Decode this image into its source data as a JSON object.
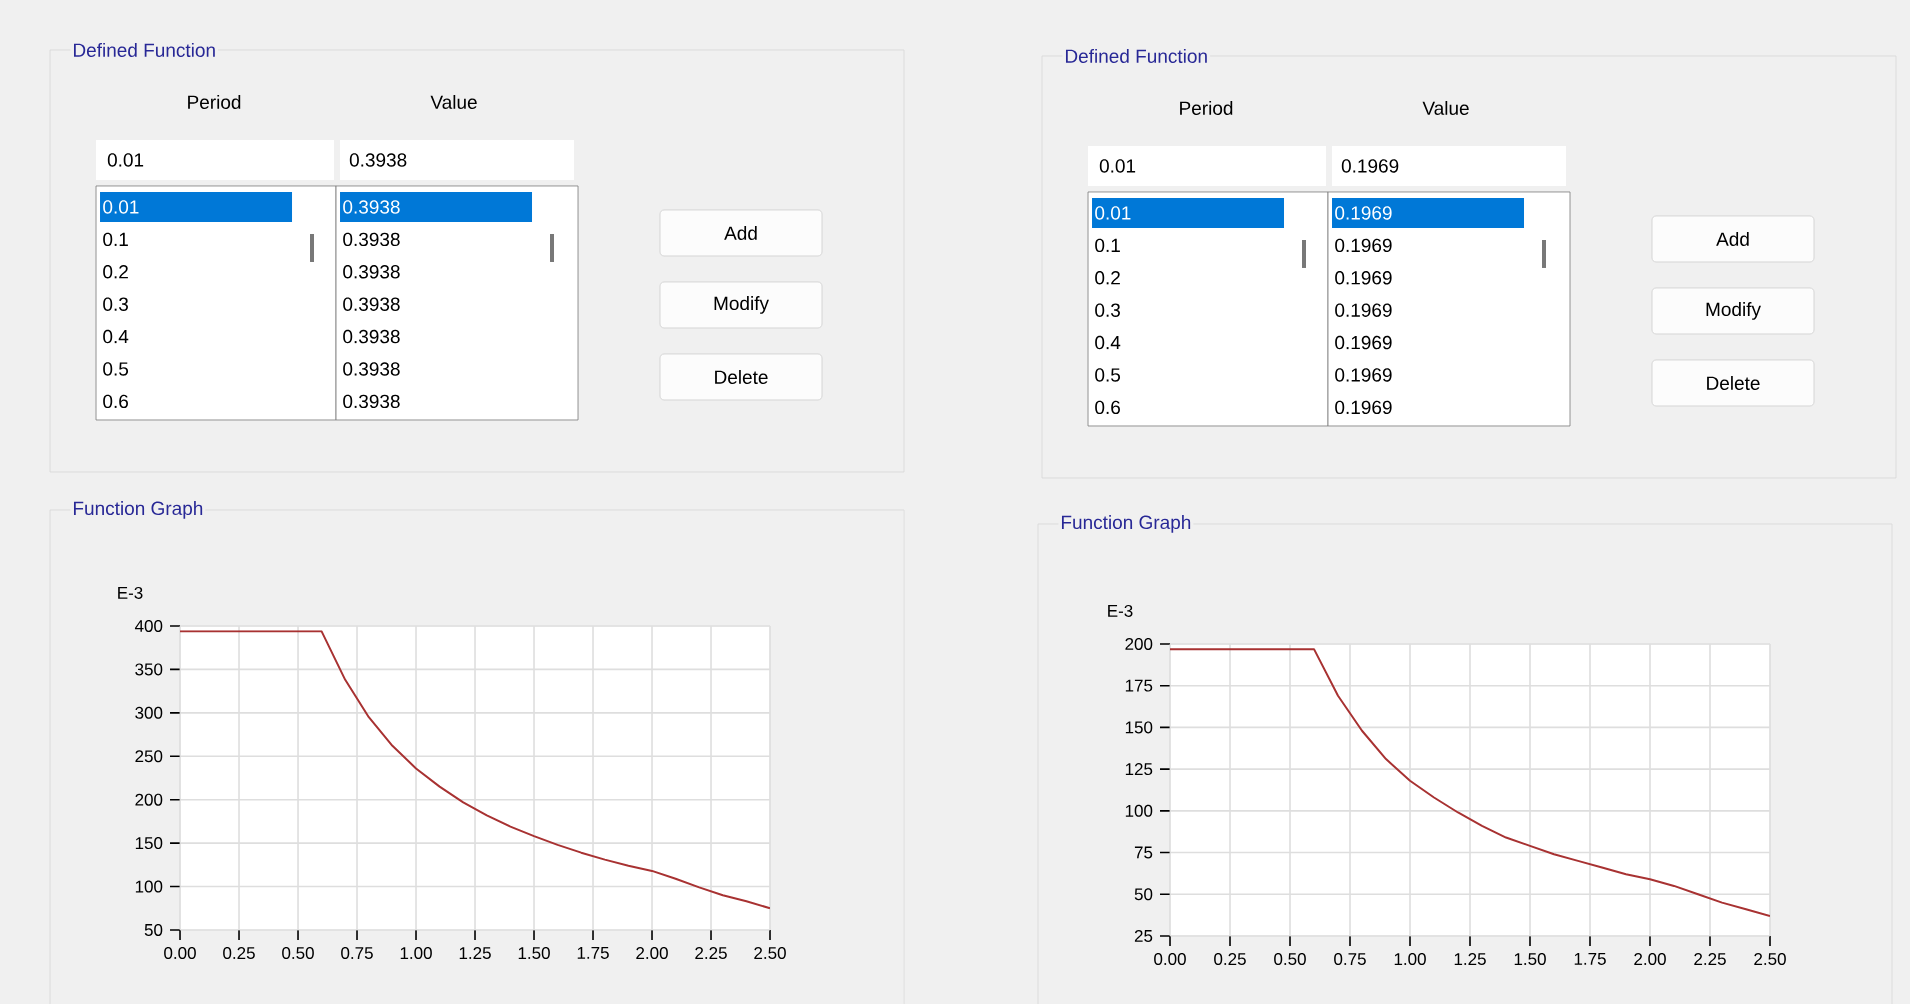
{
  "chart_data": [
    {
      "type": "other",
      "title": "Defined Function",
      "annotations": [
        "Period",
        "Value",
        "0.01",
        "0.3938",
        "0.01",
        "0.1",
        "0.2",
        "0.3",
        "0.4",
        "0.5",
        "0.6",
        "0.3938",
        "0.3938",
        "0.3938",
        "0.3938",
        "0.3938",
        "0.3938",
        "0.3938",
        "Add",
        "Modify",
        "Delete"
      ]
    },
    {
      "type": "other",
      "title": "Defined Function",
      "annotations": [
        "Period",
        "Value",
        "0.01",
        "0.1969",
        "0.01",
        "0.1",
        "0.2",
        "0.3",
        "0.4",
        "0.5",
        "0.6",
        "0.1969",
        "0.1969",
        "0.1969",
        "0.1969",
        "0.1969",
        "0.1969",
        "0.1969",
        "Add",
        "Modify",
        "Delete"
      ]
    },
    {
      "type": "line",
      "title": "Function Graph",
      "ylabel": "E-3",
      "grid": true,
      "xlim": [
        0,
        2.5
      ],
      "ylim": [
        50,
        400
      ],
      "xticks": [
        {
          "value": 0,
          "label": "0.00"
        },
        {
          "value": 0.25,
          "label": "0.25"
        },
        {
          "value": 0.5,
          "label": "0.50"
        },
        {
          "value": 0.75,
          "label": "0.75"
        },
        {
          "value": 1,
          "label": "1.00"
        },
        {
          "value": 1.25,
          "label": "1.25"
        },
        {
          "value": 1.5,
          "label": "1.50"
        },
        {
          "value": 1.75,
          "label": "1.75"
        },
        {
          "value": 2,
          "label": "2.00"
        },
        {
          "value": 2.25,
          "label": "2.25"
        },
        {
          "value": 2.5,
          "label": "2.50"
        }
      ],
      "yticks": [
        50,
        100,
        150,
        200,
        250,
        300,
        350,
        400
      ],
      "x": [
        0,
        0.6,
        0.7,
        0.8,
        0.9,
        1.0,
        1.1,
        1.2,
        1.3,
        1.4,
        1.5,
        1.6,
        1.7,
        1.8,
        1.9,
        2.0,
        2.1,
        2.2,
        2.3,
        2.4,
        2.5
      ],
      "series": [
        {
          "color": "#a83232",
          "values": [
            393.8,
            393.8,
            338,
            295,
            262,
            236,
            215,
            197,
            182,
            169,
            158,
            148,
            139,
            131,
            124,
            118,
            109,
            99,
            90,
            83,
            75
          ]
        }
      ]
    },
    {
      "type": "line",
      "title": "Function Graph",
      "ylabel": "E-3",
      "grid": true,
      "xlim": [
        0,
        2.5
      ],
      "ylim": [
        25,
        200
      ],
      "xticks": [
        {
          "value": 0,
          "label": "0.00"
        },
        {
          "value": 0.25,
          "label": "0.25"
        },
        {
          "value": 0.5,
          "label": "0.50"
        },
        {
          "value": 0.75,
          "label": "0.75"
        },
        {
          "value": 1,
          "label": "1.00"
        },
        {
          "value": 1.25,
          "label": "1.25"
        },
        {
          "value": 1.5,
          "label": "1.50"
        },
        {
          "value": 1.75,
          "label": "1.75"
        },
        {
          "value": 2,
          "label": "2.00"
        },
        {
          "value": 2.25,
          "label": "2.25"
        },
        {
          "value": 2.5,
          "label": "2.50"
        }
      ],
      "yticks": [
        25,
        50,
        75,
        100,
        125,
        150,
        175,
        200
      ],
      "x": [
        0,
        0.6,
        0.7,
        0.8,
        0.9,
        1.0,
        1.1,
        1.2,
        1.3,
        1.4,
        1.5,
        1.6,
        1.7,
        1.8,
        1.9,
        2.0,
        2.1,
        2.2,
        2.3,
        2.4,
        2.5
      ],
      "series": [
        {
          "color": "#a83232",
          "values": [
            196.9,
            196.9,
            169,
            148,
            131,
            118,
            108,
            99,
            91,
            84,
            79,
            74,
            70,
            66,
            62,
            59,
            55,
            50,
            45,
            41,
            37
          ]
        }
      ]
    }
  ]
}
